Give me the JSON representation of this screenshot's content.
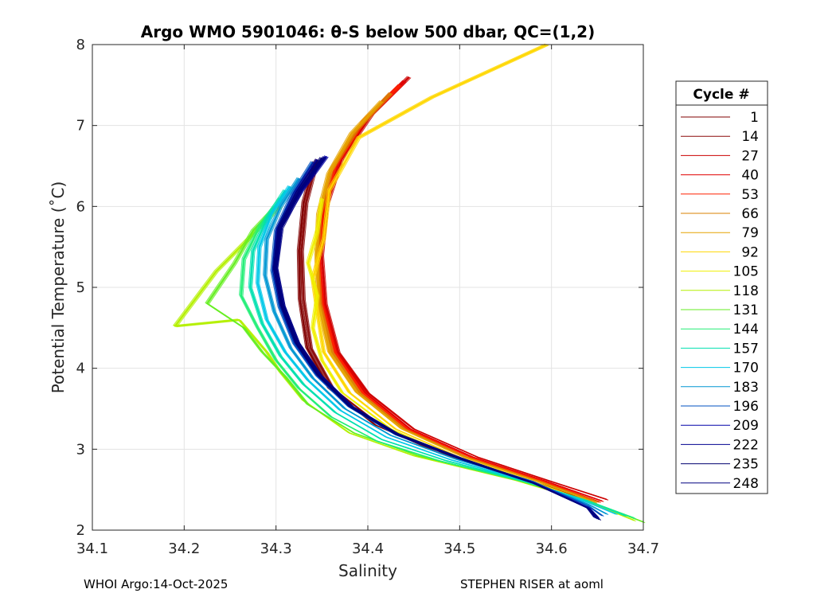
{
  "chart_data": {
    "type": "line",
    "title": "Argo WMO 5901046: θ-S below 500 dbar,  QC=(1,2)",
    "xlabel": "Salinity",
    "ylabel": "Potential Temperature (˚C)",
    "xlim": [
      34.1,
      34.7
    ],
    "ylim": [
      2,
      8
    ],
    "x_ticks": [
      34.1,
      34.2,
      34.3,
      34.4,
      34.5,
      34.6,
      34.7
    ],
    "x_tick_labels": [
      "34.1",
      "34.2",
      "34.3",
      "34.4",
      "34.5",
      "34.6",
      "34.7"
    ],
    "y_ticks": [
      2,
      3,
      4,
      5,
      6,
      7,
      8
    ],
    "y_tick_labels": [
      "2",
      "3",
      "4",
      "5",
      "6",
      "7",
      "8"
    ],
    "grid": true,
    "legend_title": "Cycle #",
    "legend_position": "outside-right",
    "series": [
      {
        "name": "1",
        "color": "#800000",
        "points": [
          [
            34.342,
            6.55
          ],
          [
            34.33,
            6.05
          ],
          [
            34.325,
            5.45
          ],
          [
            34.326,
            4.85
          ],
          [
            34.334,
            4.25
          ],
          [
            34.358,
            3.75
          ],
          [
            34.408,
            3.3
          ],
          [
            34.478,
            2.95
          ],
          [
            34.57,
            2.62
          ],
          [
            34.64,
            2.38
          ]
        ]
      },
      {
        "name": "14",
        "color": "#8b0a0a",
        "points": [
          [
            34.345,
            6.58
          ],
          [
            34.333,
            6.05
          ],
          [
            34.328,
            5.45
          ],
          [
            34.33,
            4.85
          ],
          [
            34.338,
            4.25
          ],
          [
            34.362,
            3.75
          ],
          [
            34.413,
            3.3
          ],
          [
            34.482,
            2.95
          ],
          [
            34.573,
            2.62
          ],
          [
            34.642,
            2.38
          ]
        ]
      },
      {
        "name": "27",
        "color": "#cc0000",
        "points": [
          [
            34.445,
            7.6
          ],
          [
            34.405,
            7.15
          ],
          [
            34.372,
            6.6
          ],
          [
            34.355,
            6.0
          ],
          [
            34.35,
            5.4
          ],
          [
            34.354,
            4.8
          ],
          [
            34.368,
            4.2
          ],
          [
            34.4,
            3.7
          ],
          [
            34.45,
            3.25
          ],
          [
            34.52,
            2.9
          ],
          [
            34.6,
            2.6
          ],
          [
            34.66,
            2.38
          ]
        ]
      },
      {
        "name": "40",
        "color": "#e00000",
        "points": [
          [
            34.44,
            7.55
          ],
          [
            34.4,
            7.1
          ],
          [
            34.368,
            6.55
          ],
          [
            34.352,
            5.95
          ],
          [
            34.347,
            5.4
          ],
          [
            34.352,
            4.8
          ],
          [
            34.366,
            4.2
          ],
          [
            34.397,
            3.7
          ],
          [
            34.446,
            3.25
          ],
          [
            34.515,
            2.9
          ],
          [
            34.595,
            2.6
          ],
          [
            34.655,
            2.36
          ]
        ]
      },
      {
        "name": "53",
        "color": "#ff2000",
        "points": [
          [
            34.435,
            7.5
          ],
          [
            34.395,
            7.05
          ],
          [
            34.364,
            6.5
          ],
          [
            34.35,
            5.9
          ],
          [
            34.346,
            5.4
          ],
          [
            34.35,
            4.8
          ],
          [
            34.364,
            4.2
          ],
          [
            34.394,
            3.7
          ],
          [
            34.443,
            3.25
          ],
          [
            34.512,
            2.9
          ],
          [
            34.592,
            2.6
          ],
          [
            34.652,
            2.35
          ]
        ]
      },
      {
        "name": "66",
        "color": "#d98000",
        "points": [
          [
            34.425,
            7.4
          ],
          [
            34.388,
            6.95
          ],
          [
            34.36,
            6.45
          ],
          [
            34.348,
            5.9
          ],
          [
            34.345,
            5.4
          ],
          [
            34.348,
            4.8
          ],
          [
            34.361,
            4.2
          ],
          [
            34.391,
            3.7
          ],
          [
            34.44,
            3.25
          ],
          [
            34.508,
            2.9
          ],
          [
            34.588,
            2.6
          ],
          [
            34.65,
            2.35
          ]
        ]
      },
      {
        "name": "79",
        "color": "#e6a400",
        "points": [
          [
            34.415,
            7.3
          ],
          [
            34.382,
            6.9
          ],
          [
            34.357,
            6.4
          ],
          [
            34.346,
            5.9
          ],
          [
            34.344,
            5.4
          ],
          [
            34.346,
            4.8
          ],
          [
            34.358,
            4.2
          ],
          [
            34.388,
            3.7
          ],
          [
            34.437,
            3.25
          ],
          [
            34.505,
            2.9
          ],
          [
            34.585,
            2.6
          ],
          [
            34.648,
            2.34
          ]
        ]
      },
      {
        "name": "92",
        "color": "#ffd700",
        "points": [
          [
            34.595,
            8.0
          ],
          [
            34.47,
            7.35
          ],
          [
            34.39,
            6.85
          ],
          [
            34.358,
            6.2
          ],
          [
            34.352,
            5.6
          ],
          [
            34.34,
            5.1
          ],
          [
            34.345,
            4.7
          ],
          [
            34.352,
            4.2
          ],
          [
            34.38,
            3.7
          ],
          [
            34.43,
            3.25
          ],
          [
            34.5,
            2.9
          ],
          [
            34.58,
            2.6
          ],
          [
            34.645,
            2.33
          ]
        ]
      },
      {
        "name": "105",
        "color": "#f0f000",
        "points": [
          [
            34.35,
            6.1
          ],
          [
            34.345,
            5.7
          ],
          [
            34.335,
            5.3
          ],
          [
            34.345,
            4.9
          ],
          [
            34.34,
            4.5
          ],
          [
            34.35,
            4.1
          ],
          [
            34.372,
            3.7
          ],
          [
            34.425,
            3.25
          ],
          [
            34.495,
            2.9
          ],
          [
            34.578,
            2.6
          ],
          [
            34.643,
            2.33
          ]
        ]
      },
      {
        "name": "118",
        "color": "#b4f000",
        "points": [
          [
            34.305,
            6.0
          ],
          [
            34.27,
            5.6
          ],
          [
            34.235,
            5.2
          ],
          [
            34.19,
            4.52
          ],
          [
            34.26,
            4.6
          ],
          [
            34.29,
            4.2
          ],
          [
            34.305,
            3.95
          ],
          [
            34.33,
            3.6
          ],
          [
            34.38,
            3.2
          ],
          [
            34.45,
            2.92
          ],
          [
            34.56,
            2.62
          ],
          [
            34.64,
            2.35
          ],
          [
            34.69,
            2.12
          ]
        ]
      },
      {
        "name": "131",
        "color": "#66ee22",
        "points": [
          [
            34.3,
            6.0
          ],
          [
            34.275,
            5.7
          ],
          [
            34.255,
            5.3
          ],
          [
            34.225,
            4.8
          ],
          [
            34.265,
            4.5
          ],
          [
            34.285,
            4.2
          ],
          [
            34.31,
            3.9
          ],
          [
            34.335,
            3.55
          ],
          [
            34.385,
            3.2
          ],
          [
            34.455,
            2.92
          ],
          [
            34.562,
            2.62
          ],
          [
            34.64,
            2.36
          ],
          [
            34.7,
            2.1
          ]
        ]
      },
      {
        "name": "144",
        "color": "#22ee77",
        "points": [
          [
            34.305,
            6.1
          ],
          [
            34.282,
            5.75
          ],
          [
            34.265,
            5.35
          ],
          [
            34.262,
            4.9
          ],
          [
            34.28,
            4.5
          ],
          [
            34.3,
            4.1
          ],
          [
            34.325,
            3.75
          ],
          [
            34.36,
            3.4
          ],
          [
            34.41,
            3.1
          ],
          [
            34.48,
            2.85
          ],
          [
            34.57,
            2.6
          ],
          [
            34.64,
            2.36
          ],
          [
            34.69,
            2.15
          ]
        ]
      },
      {
        "name": "157",
        "color": "#00e0b0",
        "points": [
          [
            34.31,
            6.2
          ],
          [
            34.29,
            5.85
          ],
          [
            34.275,
            5.45
          ],
          [
            34.272,
            5.0
          ],
          [
            34.285,
            4.55
          ],
          [
            34.305,
            4.15
          ],
          [
            34.33,
            3.8
          ],
          [
            34.365,
            3.45
          ],
          [
            34.415,
            3.12
          ],
          [
            34.485,
            2.86
          ],
          [
            34.572,
            2.6
          ],
          [
            34.64,
            2.36
          ],
          [
            34.68,
            2.18
          ]
        ]
      },
      {
        "name": "170",
        "color": "#00c8e8",
        "points": [
          [
            34.315,
            6.25
          ],
          [
            34.295,
            5.9
          ],
          [
            34.282,
            5.5
          ],
          [
            34.28,
            5.05
          ],
          [
            34.29,
            4.6
          ],
          [
            34.31,
            4.2
          ],
          [
            34.335,
            3.85
          ],
          [
            34.37,
            3.48
          ],
          [
            34.42,
            3.15
          ],
          [
            34.49,
            2.87
          ],
          [
            34.575,
            2.6
          ],
          [
            34.64,
            2.34
          ],
          [
            34.67,
            2.2
          ]
        ]
      },
      {
        "name": "183",
        "color": "#0096d2",
        "points": [
          [
            34.325,
            6.35
          ],
          [
            34.305,
            6.0
          ],
          [
            34.29,
            5.6
          ],
          [
            34.288,
            5.15
          ],
          [
            34.298,
            4.7
          ],
          [
            34.316,
            4.25
          ],
          [
            34.34,
            3.88
          ],
          [
            34.375,
            3.5
          ],
          [
            34.425,
            3.17
          ],
          [
            34.495,
            2.88
          ],
          [
            34.578,
            2.6
          ],
          [
            34.64,
            2.32
          ],
          [
            34.66,
            2.2
          ]
        ]
      },
      {
        "name": "196",
        "color": "#0050c0",
        "points": [
          [
            34.34,
            6.55
          ],
          [
            34.318,
            6.15
          ],
          [
            34.3,
            5.7
          ],
          [
            34.296,
            5.2
          ],
          [
            34.304,
            4.75
          ],
          [
            34.32,
            4.3
          ],
          [
            34.345,
            3.9
          ],
          [
            34.38,
            3.52
          ],
          [
            34.43,
            3.18
          ],
          [
            34.5,
            2.88
          ],
          [
            34.58,
            2.6
          ],
          [
            34.64,
            2.3
          ],
          [
            34.655,
            2.18
          ]
        ]
      },
      {
        "name": "209",
        "color": "#0000a8",
        "points": [
          [
            34.355,
            6.62
          ],
          [
            34.328,
            6.2
          ],
          [
            34.305,
            5.75
          ],
          [
            34.3,
            5.25
          ],
          [
            34.308,
            4.78
          ],
          [
            34.324,
            4.32
          ],
          [
            34.348,
            3.92
          ],
          [
            34.383,
            3.53
          ],
          [
            34.433,
            3.19
          ],
          [
            34.502,
            2.88
          ],
          [
            34.582,
            2.58
          ],
          [
            34.64,
            2.28
          ],
          [
            34.65,
            2.16
          ]
        ]
      },
      {
        "name": "222",
        "color": "#000090",
        "points": [
          [
            34.345,
            6.58
          ],
          [
            34.322,
            6.18
          ],
          [
            34.302,
            5.72
          ],
          [
            34.298,
            5.22
          ],
          [
            34.306,
            4.77
          ],
          [
            34.322,
            4.31
          ],
          [
            34.346,
            3.91
          ],
          [
            34.381,
            3.52
          ],
          [
            34.431,
            3.18
          ],
          [
            34.5,
            2.88
          ],
          [
            34.58,
            2.58
          ],
          [
            34.64,
            2.27
          ],
          [
            34.648,
            2.15
          ]
        ]
      },
      {
        "name": "235",
        "color": "#000070",
        "points": [
          [
            34.35,
            6.6
          ],
          [
            34.325,
            6.19
          ],
          [
            34.304,
            5.73
          ],
          [
            34.299,
            5.23
          ],
          [
            34.307,
            4.77
          ],
          [
            34.323,
            4.31
          ],
          [
            34.347,
            3.91
          ],
          [
            34.382,
            3.52
          ],
          [
            34.432,
            3.18
          ],
          [
            34.501,
            2.88
          ],
          [
            34.581,
            2.58
          ],
          [
            34.64,
            2.27
          ],
          [
            34.652,
            2.13
          ]
        ]
      },
      {
        "name": "248",
        "color": "#000080",
        "points": [
          [
            34.353,
            6.61
          ],
          [
            34.327,
            6.2
          ],
          [
            34.306,
            5.74
          ],
          [
            34.3,
            5.24
          ],
          [
            34.308,
            4.78
          ],
          [
            34.324,
            4.32
          ],
          [
            34.348,
            3.92
          ],
          [
            34.383,
            3.53
          ],
          [
            34.433,
            3.19
          ],
          [
            34.502,
            2.89
          ],
          [
            34.582,
            2.58
          ],
          [
            34.64,
            2.27
          ],
          [
            34.65,
            2.14
          ]
        ]
      }
    ]
  },
  "footer": {
    "left": "WHOI Argo:14-Oct-2025",
    "right": "STEPHEN RISER at aoml"
  }
}
